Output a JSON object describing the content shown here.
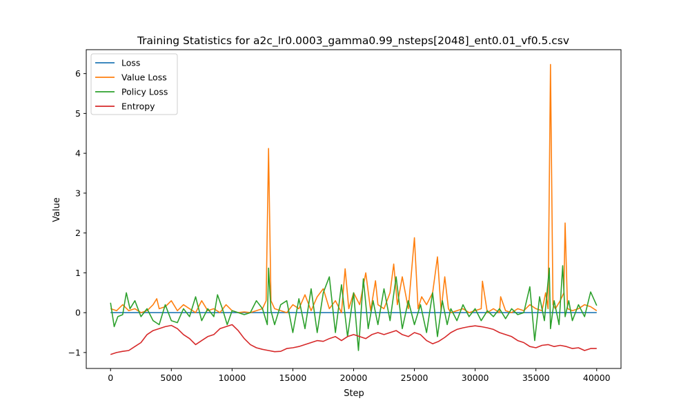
{
  "chart_data": {
    "type": "line",
    "title": "Training Statistics for a2c_lr0.0003_gamma0.99_nsteps[2048]_ent0.01_vf0.5.csv",
    "xlabel": "Step",
    "ylabel": "Value",
    "xlim": [
      -2000,
      42000
    ],
    "ylim": [
      -1.4,
      6.6
    ],
    "xticks": [
      0,
      5000,
      10000,
      15000,
      20000,
      25000,
      30000,
      35000,
      40000
    ],
    "yticks": [
      -1,
      0,
      1,
      2,
      3,
      4,
      5,
      6
    ],
    "ytick_labels": [
      "−1",
      "0",
      "1",
      "2",
      "3",
      "4",
      "5",
      "6"
    ],
    "grid": false,
    "legend": "upper-left",
    "series": [
      {
        "name": "Loss",
        "color": "#1f77b4",
        "x": [
          0,
          40000
        ],
        "values": [
          0.0,
          0.0
        ]
      },
      {
        "name": "Value Loss",
        "color": "#ff7f0e",
        "x": [
          0,
          500,
          1000,
          1500,
          2000,
          2500,
          3000,
          3500,
          3800,
          4000,
          4500,
          5000,
          5500,
          6000,
          6500,
          7000,
          7500,
          8000,
          8500,
          9000,
          9500,
          10000,
          10500,
          11000,
          11500,
          12000,
          12500,
          12800,
          13000,
          13200,
          13500,
          14000,
          14500,
          15000,
          15500,
          16000,
          16500,
          17000,
          17500,
          18000,
          18500,
          19000,
          19300,
          19600,
          20000,
          20500,
          21000,
          21400,
          21800,
          22000,
          22500,
          23000,
          23300,
          23600,
          24000,
          24500,
          25000,
          25300,
          25600,
          26000,
          26500,
          26900,
          27200,
          27500,
          27800,
          28000,
          28500,
          29000,
          29500,
          30000,
          30500,
          30600,
          31000,
          31500,
          32000,
          32100,
          32500,
          33000,
          33500,
          34000,
          34500,
          35000,
          35500,
          35800,
          36000,
          36200,
          36400,
          36600,
          37000,
          37300,
          37400,
          37600,
          38000,
          38500,
          39000,
          39500,
          40000
        ],
        "values": [
          0.1,
          0.05,
          0.2,
          0.05,
          0.1,
          0.0,
          0.05,
          0.2,
          0.35,
          0.1,
          0.15,
          0.3,
          0.05,
          0.2,
          0.1,
          0.0,
          0.3,
          0.05,
          0.1,
          0.0,
          0.2,
          0.05,
          0.0,
          0.02,
          0.0,
          0.05,
          0.1,
          0.3,
          4.12,
          0.3,
          0.1,
          0.05,
          0.0,
          0.2,
          0.1,
          0.45,
          0.05,
          0.4,
          0.6,
          0.1,
          0.3,
          0.0,
          1.1,
          0.1,
          0.5,
          0.2,
          1.0,
          0.05,
          0.8,
          0.2,
          0.1,
          0.5,
          1.22,
          0.2,
          0.9,
          0.1,
          1.88,
          0.1,
          0.4,
          0.2,
          0.5,
          1.4,
          0.05,
          0.9,
          0.1,
          0.0,
          0.05,
          0.1,
          0.0,
          0.05,
          0.1,
          0.79,
          0.0,
          0.1,
          0.0,
          0.4,
          0.05,
          0.0,
          0.1,
          0.05,
          0.2,
          0.1,
          0.05,
          0.5,
          0.1,
          6.23,
          0.2,
          0.1,
          0.3,
          0.5,
          2.25,
          0.1,
          0.05,
          0.1,
          0.2,
          0.15,
          0.05
        ]
      },
      {
        "name": "Policy Loss",
        "color": "#2ca02c",
        "x": [
          0,
          300,
          600,
          1000,
          1300,
          1600,
          2000,
          2500,
          3000,
          3500,
          4000,
          4500,
          5000,
          5500,
          6000,
          6500,
          7000,
          7500,
          8000,
          8500,
          8800,
          9200,
          9600,
          10000,
          10500,
          11000,
          11500,
          12000,
          12500,
          12900,
          13000,
          13200,
          13500,
          14000,
          14500,
          15000,
          15500,
          16000,
          16500,
          17000,
          17500,
          18000,
          18500,
          19000,
          19500,
          20000,
          20400,
          20800,
          21200,
          21600,
          22000,
          22500,
          23000,
          23500,
          24000,
          24500,
          25000,
          25500,
          26000,
          26500,
          26900,
          27300,
          27700,
          28000,
          28500,
          29000,
          29500,
          30000,
          30500,
          31000,
          31500,
          32000,
          32500,
          33000,
          33500,
          34000,
          34500,
          34900,
          35300,
          35700,
          36100,
          36200,
          36500,
          36900,
          37200,
          37400,
          37700,
          38000,
          38500,
          39000,
          39500,
          40000
        ],
        "values": [
          0.25,
          -0.35,
          -0.1,
          -0.05,
          0.5,
          0.1,
          0.3,
          -0.1,
          0.1,
          -0.2,
          -0.3,
          0.2,
          -0.2,
          -0.25,
          0.1,
          -0.1,
          0.4,
          -0.2,
          0.1,
          -0.1,
          0.45,
          0.1,
          -0.3,
          0.05,
          0.0,
          -0.05,
          0.0,
          0.3,
          0.1,
          -0.3,
          1.12,
          0.05,
          -0.3,
          0.2,
          0.3,
          -0.5,
          0.35,
          -0.4,
          0.6,
          -0.5,
          0.5,
          0.9,
          -0.5,
          0.7,
          -0.6,
          0.5,
          -0.95,
          0.85,
          -0.4,
          0.3,
          -0.3,
          0.6,
          -0.2,
          0.9,
          -0.4,
          0.3,
          -0.3,
          0.2,
          -0.5,
          0.5,
          -0.6,
          0.3,
          -0.3,
          0.1,
          -0.2,
          0.2,
          -0.1,
          0.1,
          -0.2,
          0.05,
          -0.1,
          0.1,
          -0.15,
          0.1,
          -0.05,
          0.0,
          0.65,
          -0.7,
          0.4,
          -0.2,
          1.12,
          -0.4,
          0.3,
          -0.3,
          1.18,
          -0.1,
          0.3,
          -0.2,
          0.2,
          -0.1,
          0.52,
          0.18
        ]
      },
      {
        "name": "Entropy",
        "color": "#d62728",
        "x": [
          0,
          500,
          1000,
          1500,
          2000,
          2500,
          3000,
          3500,
          4000,
          4500,
          5000,
          5500,
          6000,
          6500,
          7000,
          7500,
          8000,
          8500,
          9000,
          9500,
          10000,
          10500,
          11000,
          11500,
          12000,
          12500,
          13000,
          13500,
          14000,
          14500,
          15000,
          15500,
          16000,
          16500,
          17000,
          17500,
          18000,
          18500,
          19000,
          19500,
          20000,
          20500,
          21000,
          21500,
          22000,
          22500,
          23000,
          23500,
          24000,
          24500,
          25000,
          25500,
          26000,
          26500,
          27000,
          27500,
          28000,
          28500,
          29000,
          29500,
          30000,
          30500,
          31000,
          31500,
          32000,
          32500,
          33000,
          33500,
          34000,
          34500,
          35000,
          35500,
          36000,
          36500,
          37000,
          37500,
          38000,
          38500,
          39000,
          39500,
          40000
        ],
        "values": [
          -1.05,
          -1.0,
          -0.97,
          -0.95,
          -0.85,
          -0.75,
          -0.55,
          -0.45,
          -0.4,
          -0.35,
          -0.32,
          -0.4,
          -0.55,
          -0.65,
          -0.8,
          -0.7,
          -0.6,
          -0.55,
          -0.4,
          -0.35,
          -0.3,
          -0.45,
          -0.65,
          -0.8,
          -0.88,
          -0.92,
          -0.95,
          -0.98,
          -0.97,
          -0.9,
          -0.88,
          -0.85,
          -0.8,
          -0.75,
          -0.7,
          -0.72,
          -0.65,
          -0.6,
          -0.7,
          -0.6,
          -0.55,
          -0.6,
          -0.65,
          -0.55,
          -0.5,
          -0.55,
          -0.5,
          -0.45,
          -0.55,
          -0.6,
          -0.5,
          -0.55,
          -0.7,
          -0.78,
          -0.72,
          -0.62,
          -0.5,
          -0.42,
          -0.38,
          -0.35,
          -0.33,
          -0.35,
          -0.38,
          -0.42,
          -0.5,
          -0.55,
          -0.6,
          -0.7,
          -0.75,
          -0.85,
          -0.88,
          -0.82,
          -0.8,
          -0.85,
          -0.82,
          -0.85,
          -0.9,
          -0.88,
          -0.95,
          -0.9,
          -0.9
        ]
      }
    ]
  }
}
